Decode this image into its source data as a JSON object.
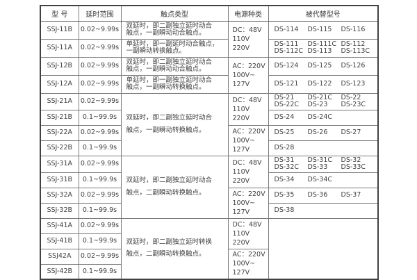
{
  "table": {
    "title_semantic": "relay-specification-table",
    "header": [
      "型 号",
      "延时范围",
      "触点类型",
      "电源种类",
      "被代替型号"
    ],
    "colors": {
      "outer_border": "#414141",
      "inner_border": "#7a7a7a",
      "text": "#3f3f3f",
      "background": "#ffffff"
    },
    "rows": [
      {
        "model": "SSJ-11B",
        "range": "0.02~9.99s",
        "contact": {
          "rowspan": 1,
          "lines": [
            "双延时，即二副独立延时动合",
            "触点，一副瞬动动合触点。"
          ]
        },
        "power": {
          "rowspan": 2,
          "lines": [
            "DC：48V",
            "110V",
            "220V"
          ]
        },
        "replaced": {
          "rowspan": 1,
          "lines": [
            [
              "DS-114",
              "DS-115",
              "DS-116"
            ]
          ]
        }
      },
      {
        "model": "SSJ-11A",
        "range": "0.02~9.99s",
        "contact": {
          "rowspan": 1,
          "lines": [
            "单延时，即一副延时动合触点，",
            "一副瞬动转换触点。"
          ]
        },
        "replaced": {
          "rowspan": 1,
          "lines": [
            [
              "DS-111",
              "DS-111C",
              "DS-112"
            ],
            [
              "DS-112C",
              "DS-113",
              "DS-113C"
            ]
          ]
        }
      },
      {
        "model": "SSJ-12B",
        "range": "0.02~9.99s",
        "contact": {
          "rowspan": 1,
          "lines": [
            "双延时，即二副独立延时动合",
            "触点，一副瞬动动合触点。"
          ]
        },
        "power": {
          "rowspan": 2,
          "lines": [
            "AC：220V",
            "100V~",
            "127V"
          ]
        },
        "replaced": {
          "rowspan": 1,
          "lines": [
            [
              "DS-124",
              "DS-125",
              "DS-126"
            ]
          ]
        }
      },
      {
        "model": "SSJ-12A",
        "range": "0.02~9.99s",
        "contact": {
          "rowspan": 1,
          "lines": [
            "单延时，即一副独立延时动合",
            "触点，一副瞬动转换触点。"
          ]
        },
        "replaced": {
          "rowspan": 1,
          "lines": [
            [
              "DS-121",
              "DS-122",
              "DS-123"
            ]
          ]
        }
      },
      {
        "model": "SSJ-21A",
        "range": "0.02~9.99s",
        "contact": {
          "rowspan": 4,
          "lines": [
            "双延时，即二副独立延时动合",
            "触点，一副瞬动转换触点。"
          ]
        },
        "power": {
          "rowspan": 2,
          "lines": [
            "DC：48V",
            "110V",
            "220V"
          ]
        },
        "replaced": {
          "rowspan": 1,
          "lines": [
            [
              "DS-21",
              "DS-21C",
              "DS-22"
            ],
            [
              "DS-22C",
              "DS-23",
              "DS-23C"
            ]
          ]
        }
      },
      {
        "model": "SSJ-21B",
        "range": "0.1~99.9s",
        "replaced": {
          "rowspan": 1,
          "lines": [
            [
              "DS-24",
              "DS-24C"
            ]
          ]
        }
      },
      {
        "model": "SSJ-22A",
        "range": "0.02~9.99s",
        "power": {
          "rowspan": 2,
          "lines": [
            "AC：220V",
            "100V~",
            "127V"
          ]
        },
        "replaced": {
          "rowspan": 1,
          "lines": [
            [
              "DS-25",
              "DS-26",
              "DS-27"
            ]
          ]
        }
      },
      {
        "model": "SSJ-22B",
        "range": "0.1~99.9s",
        "replaced": {
          "rowspan": 1,
          "lines": [
            [
              "DS-28"
            ]
          ]
        }
      },
      {
        "model": "SSJ-31A",
        "range": "0.02~9.99s",
        "contact": {
          "rowspan": 4,
          "lines": [
            "双延时，即二副独立延时动合",
            "触点，二副瞬动转换触点。"
          ]
        },
        "power": {
          "rowspan": 2,
          "lines": [
            "DC：48V",
            "110V",
            "220V"
          ]
        },
        "replaced": {
          "rowspan": 1,
          "lines": [
            [
              "DS-31",
              "DS-31C",
              "DS-32"
            ],
            [
              "DS-32C",
              "DS-33",
              "DS-33C"
            ]
          ]
        }
      },
      {
        "model": "SSJ-31B",
        "range": "0.1~99.9s",
        "replaced": {
          "rowspan": 1,
          "lines": [
            [
              "DS-34",
              "DS-34C"
            ]
          ]
        }
      },
      {
        "model": "SSJ-32A",
        "range": "0.02~9.99s",
        "power": {
          "rowspan": 2,
          "lines": [
            "AC：220V",
            "100V~",
            "127V"
          ]
        },
        "replaced": {
          "rowspan": 1,
          "lines": [
            [
              "DS-35",
              "DS-36",
              "DS-37"
            ]
          ]
        }
      },
      {
        "model": "SSJ-32B",
        "range": "0.1~99.9s",
        "replaced": {
          "rowspan": 1,
          "lines": [
            [
              "DS-38"
            ]
          ]
        }
      },
      {
        "model": "SSJ-41A",
        "range": "0.02~9.99s",
        "contact": {
          "rowspan": 4,
          "lines": [
            "双延时，即二副独立延时转换",
            "触点，二副瞬动转换触点。"
          ]
        },
        "power": {
          "rowspan": 2,
          "lines": [
            "DC：48V",
            "110V",
            "220V"
          ]
        },
        "replaced": {
          "rowspan": 4,
          "lines": []
        }
      },
      {
        "model": "SSJ-41B",
        "range": "0.1~99.9s"
      },
      {
        "model": "SSJ42A",
        "range": "0.02~9.99s",
        "power": {
          "rowspan": 2,
          "lines": [
            "AC：220V",
            "100V~",
            "127V"
          ]
        }
      },
      {
        "model": "SSJ-42B",
        "range": "0.1~99.9s"
      }
    ]
  }
}
